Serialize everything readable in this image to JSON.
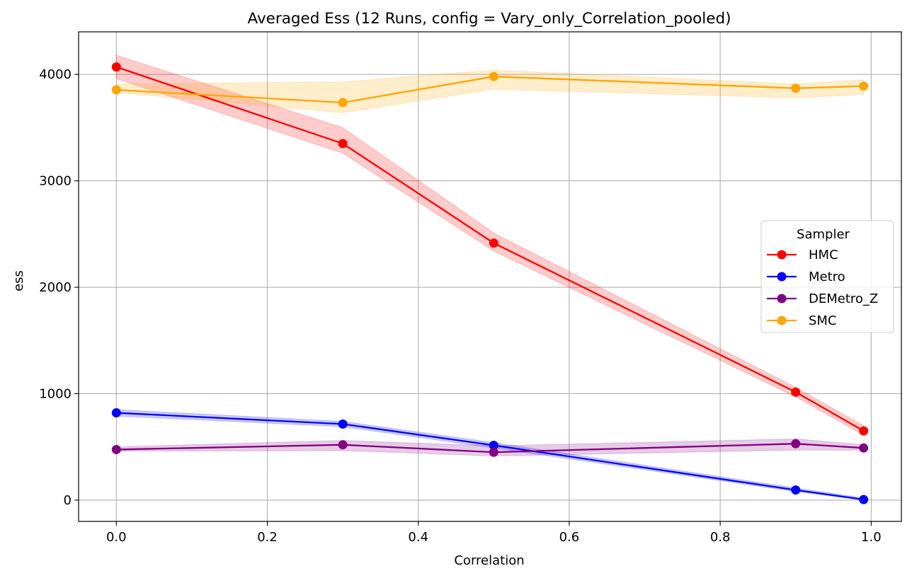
{
  "chart_data": {
    "type": "line",
    "title": "Averaged Ess (12 Runs, config = Vary_only_Correlation_pooled)",
    "xlabel": "Correlation",
    "ylabel": "ess",
    "xlim": [
      -0.05,
      1.04
    ],
    "ylim": [
      -200,
      4400
    ],
    "xticks": [
      0.0,
      0.2,
      0.4,
      0.6,
      0.8,
      1.0
    ],
    "xtick_labels": [
      "0.0",
      "0.2",
      "0.4",
      "0.6",
      "0.8",
      "1.0"
    ],
    "yticks": [
      0,
      1000,
      2000,
      3000,
      4000
    ],
    "ytick_labels": [
      "0",
      "1000",
      "2000",
      "3000",
      "4000"
    ],
    "grid": true,
    "legend": {
      "title": "Sampler",
      "placement": "center-right"
    },
    "x": [
      0.0,
      0.3,
      0.5,
      0.9,
      0.99
    ],
    "series": [
      {
        "name": "HMC",
        "color": "#ff0000",
        "values": [
          4070,
          3350,
          2415,
          1015,
          650
        ],
        "lower": [
          3960,
          3260,
          2340,
          970,
          610
        ],
        "upper": [
          4180,
          3500,
          2510,
          1060,
          700
        ]
      },
      {
        "name": "Metro",
        "color": "#0000ff",
        "values": [
          820,
          715,
          515,
          95,
          5
        ],
        "lower": [
          790,
          690,
          490,
          80,
          0
        ],
        "upper": [
          850,
          740,
          540,
          115,
          20
        ]
      },
      {
        "name": "DEMetro_Z",
        "color": "#800080",
        "values": [
          475,
          520,
          450,
          530,
          490
        ],
        "lower": [
          460,
          465,
          415,
          470,
          470
        ],
        "upper": [
          500,
          560,
          510,
          575,
          520
        ]
      },
      {
        "name": "SMC",
        "color": "#ffa500",
        "values": [
          3855,
          3735,
          3980,
          3870,
          3890
        ],
        "lower": [
          3830,
          3640,
          3860,
          3780,
          3810
        ],
        "upper": [
          3910,
          3930,
          4040,
          3910,
          3950
        ]
      }
    ]
  }
}
